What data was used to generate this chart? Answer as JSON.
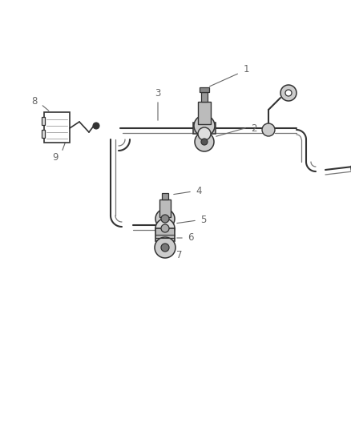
{
  "bg_color": "#ffffff",
  "line_color": "#888888",
  "dark_color": "#333333",
  "label_color": "#666666",
  "lw_pipe": 1.5,
  "lw_detail": 0.9,
  "label_fontsize": 8.5
}
